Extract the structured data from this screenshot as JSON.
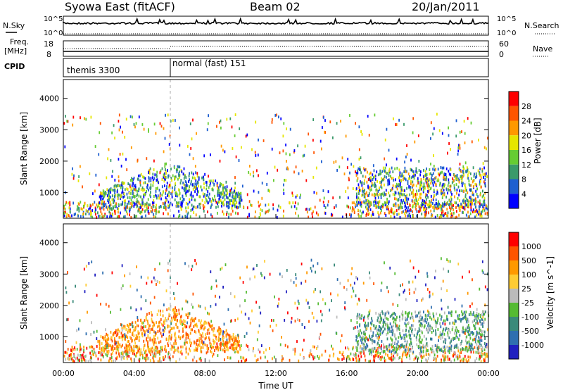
{
  "header": {
    "title": "Syowa East (fitACF)",
    "beam": "Beam 02",
    "date": "20/Jan/2011"
  },
  "noise_panel": {
    "left_label": "N.Sky",
    "right_label": "N.Search",
    "left_ticks": [
      "10^5",
      "10^0"
    ],
    "right_ticks": [
      "10^5",
      "10^0"
    ]
  },
  "freq_panel": {
    "left_label_1": "Freq.",
    "left_label_2": "[MHz]",
    "right_label": "Nave",
    "left_ticks": [
      "18",
      "8"
    ],
    "right_ticks": [
      "60",
      "0"
    ]
  },
  "cpid_panel": {
    "label": "CPID",
    "modes": [
      {
        "name": "themis 3300",
        "start_hour": 0
      },
      {
        "name": "normal (fast) 151",
        "start_hour": 6.05
      }
    ]
  },
  "x_axis": {
    "label": "Time UT",
    "ticks": [
      "00:00",
      "04:00",
      "08:00",
      "12:00",
      "16:00",
      "20:00",
      "00:00"
    ]
  },
  "power_colorbar": {
    "label": "Power [dB]",
    "ticks": [
      "4",
      "8",
      "12",
      "16",
      "20",
      "24",
      "28"
    ],
    "colors": [
      "#0000ff",
      "#1e5fd0",
      "#3a9a6a",
      "#66cc33",
      "#e6e600",
      "#ff9900",
      "#ff5500",
      "#ff0000"
    ]
  },
  "velocity_colorbar": {
    "label": "Velocity [m s^-1]",
    "ticks": [
      "1000",
      "500",
      "100",
      "25",
      "-25",
      "-100",
      "-500",
      "-1000"
    ],
    "colors": [
      "#2020c0",
      "#2f6fb0",
      "#3a8a7a",
      "#55bb33",
      "#bbbbbb",
      "#ffcc33",
      "#ff9900",
      "#ff5500",
      "#ff0000"
    ]
  },
  "chart_data": [
    {
      "type": "heatmap",
      "title": "Power",
      "xlabel": "Time UT",
      "ylabel": "Slant Range [km]",
      "xlim": [
        0,
        24
      ],
      "ylim": [
        180,
        4600
      ],
      "y_ticks": [
        1000,
        2000,
        3000,
        4000
      ],
      "colorbar_label": "Power [dB]"
    },
    {
      "type": "heatmap",
      "title": "Velocity",
      "xlabel": "Time UT",
      "ylabel": "Slant Range [km]",
      "xlim": [
        0,
        24
      ],
      "ylim": [
        180,
        4600
      ],
      "y_ticks": [
        1000,
        2000,
        3000,
        4000
      ],
      "colorbar_label": "Velocity [m s^-1]"
    }
  ]
}
